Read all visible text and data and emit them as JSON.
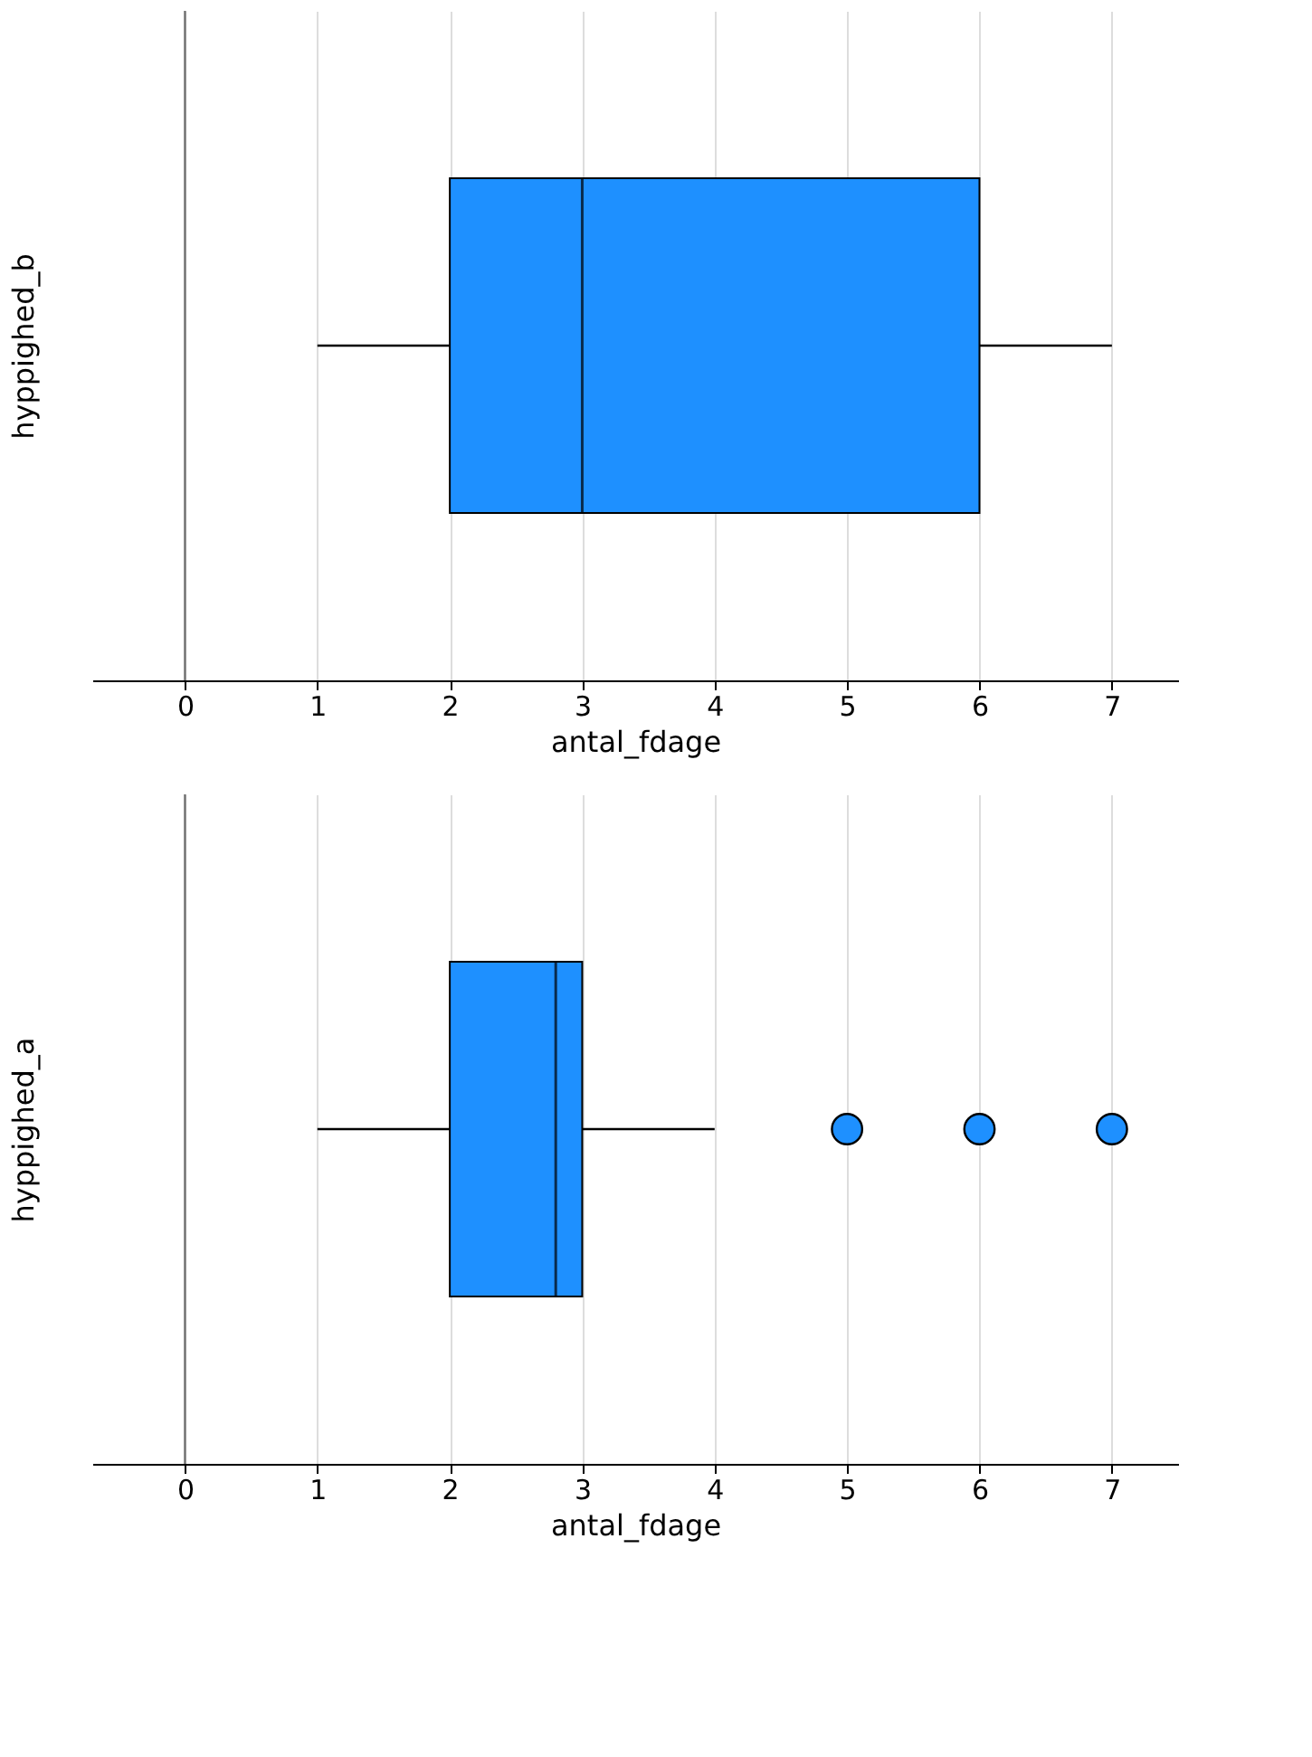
{
  "chart_data": [
    {
      "type": "box",
      "orientation": "horizontal",
      "ylabel": "hyppighed_b",
      "xlabel": "antal_fdage",
      "categories": [
        null
      ],
      "color": "#1e90ff",
      "boxes": [
        {
          "low": 1,
          "q1": 2,
          "median": 3,
          "q3": 6,
          "high": 7
        }
      ],
      "xlim": [
        -0.7,
        7.5
      ],
      "xticks": [
        0,
        1,
        2,
        3,
        4,
        5,
        6,
        7
      ],
      "grid": "x",
      "ref_lines": [
        {
          "axis": "x",
          "value": 0,
          "color": "#707070"
        }
      ]
    },
    {
      "type": "box",
      "orientation": "horizontal",
      "ylabel": "hyppighed_a",
      "xlabel": "antal_fdage",
      "categories": [
        null
      ],
      "color": "#1e90ff",
      "boxes": [
        {
          "low": 1,
          "q1": 2,
          "median": 2.8,
          "q3": 3,
          "high": 4,
          "outliers": [
            5,
            6,
            7
          ]
        }
      ],
      "xlim": [
        -0.7,
        7.5
      ],
      "xticks": [
        0,
        1,
        2,
        3,
        4,
        5,
        6,
        7
      ],
      "grid": "x",
      "ref_lines": [
        {
          "axis": "x",
          "value": 0,
          "color": "#707070"
        }
      ]
    }
  ]
}
